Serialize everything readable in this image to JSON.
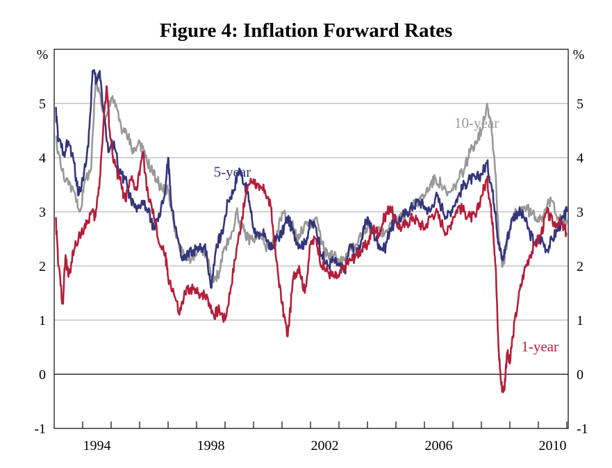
{
  "chart_data": {
    "type": "line",
    "title": "Figure 4: Inflation Forward Rates",
    "y_unit_left": "%",
    "y_unit_right": "%",
    "ylim": [
      -1,
      6
    ],
    "y_ticks": [
      -1,
      0,
      1,
      2,
      3,
      4,
      5
    ],
    "xlim": [
      1993.0,
      2011.05
    ],
    "x_ticks": [
      1994,
      1998,
      2002,
      2006,
      2010
    ],
    "x_minor_ticks": [
      1994,
      1995,
      1996,
      1997,
      1998,
      1999,
      2000,
      2001,
      2002,
      2003,
      2004,
      2005,
      2006,
      2007,
      2008,
      2009,
      2010,
      2011
    ],
    "grid": true,
    "series": [
      {
        "name": "10-year",
        "color": "#999999",
        "points": [
          [
            1993.05,
            4.4
          ],
          [
            1993.25,
            3.8
          ],
          [
            1993.5,
            3.5
          ],
          [
            1993.75,
            3.3
          ],
          [
            1993.9,
            3.0
          ],
          [
            1994.1,
            3.6
          ],
          [
            1994.3,
            3.8
          ],
          [
            1994.45,
            5.4
          ],
          [
            1994.6,
            5.2
          ],
          [
            1994.8,
            4.7
          ],
          [
            1995.0,
            5.1
          ],
          [
            1995.2,
            4.9
          ],
          [
            1995.4,
            4.5
          ],
          [
            1995.6,
            4.4
          ],
          [
            1995.8,
            4.1
          ],
          [
            1996.0,
            4.3
          ],
          [
            1996.2,
            4.0
          ],
          [
            1996.4,
            3.8
          ],
          [
            1996.6,
            3.6
          ],
          [
            1996.8,
            3.4
          ],
          [
            1997.0,
            3.4
          ],
          [
            1997.2,
            2.8
          ],
          [
            1997.4,
            2.3
          ],
          [
            1997.6,
            2.2
          ],
          [
            1997.8,
            2.1
          ],
          [
            1998.0,
            2.2
          ],
          [
            1998.2,
            2.3
          ],
          [
            1998.4,
            2.1
          ],
          [
            1998.6,
            1.7
          ],
          [
            1998.8,
            1.9
          ],
          [
            1998.95,
            2.3
          ],
          [
            1999.2,
            2.5
          ],
          [
            1999.4,
            3.0
          ],
          [
            1999.6,
            2.7
          ],
          [
            1999.8,
            2.5
          ],
          [
            2000.0,
            2.5
          ],
          [
            2000.2,
            2.6
          ],
          [
            2000.4,
            2.4
          ],
          [
            2000.6,
            2.3
          ],
          [
            2000.8,
            2.5
          ],
          [
            2001.0,
            3.0
          ],
          [
            2001.2,
            2.9
          ],
          [
            2001.4,
            2.7
          ],
          [
            2001.6,
            2.5
          ],
          [
            2001.8,
            2.8
          ],
          [
            2002.0,
            2.7
          ],
          [
            2002.2,
            2.9
          ],
          [
            2002.4,
            2.4
          ],
          [
            2002.6,
            2.2
          ],
          [
            2002.8,
            2.2
          ],
          [
            2003.0,
            2.1
          ],
          [
            2003.2,
            2.1
          ],
          [
            2003.4,
            2.3
          ],
          [
            2003.6,
            2.4
          ],
          [
            2003.8,
            2.6
          ],
          [
            2004.0,
            2.7
          ],
          [
            2004.2,
            2.6
          ],
          [
            2004.4,
            2.7
          ],
          [
            2004.6,
            2.6
          ],
          [
            2004.8,
            2.8
          ],
          [
            2005.0,
            2.8
          ],
          [
            2005.2,
            2.9
          ],
          [
            2005.4,
            3.0
          ],
          [
            2005.6,
            3.1
          ],
          [
            2005.8,
            3.2
          ],
          [
            2006.0,
            3.3
          ],
          [
            2006.2,
            3.5
          ],
          [
            2006.4,
            3.6
          ],
          [
            2006.6,
            3.5
          ],
          [
            2006.8,
            3.3
          ],
          [
            2007.0,
            3.4
          ],
          [
            2007.2,
            3.6
          ],
          [
            2007.4,
            3.8
          ],
          [
            2007.6,
            4.1
          ],
          [
            2007.8,
            4.3
          ],
          [
            2008.0,
            4.5
          ],
          [
            2008.2,
            5.0
          ],
          [
            2008.35,
            4.6
          ],
          [
            2008.5,
            3.7
          ],
          [
            2008.6,
            2.6
          ],
          [
            2008.75,
            2.0
          ],
          [
            2008.9,
            2.4
          ],
          [
            2009.1,
            2.9
          ],
          [
            2009.3,
            3.0
          ],
          [
            2009.5,
            3.1
          ],
          [
            2009.7,
            3.0
          ],
          [
            2009.9,
            2.9
          ],
          [
            2010.1,
            2.9
          ],
          [
            2010.3,
            3.1
          ],
          [
            2010.5,
            3.2
          ],
          [
            2010.7,
            2.9
          ],
          [
            2010.9,
            2.8
          ],
          [
            2011.0,
            2.85
          ]
        ]
      },
      {
        "name": "5-year",
        "color": "#34357a",
        "points": [
          [
            1993.05,
            4.9
          ],
          [
            1993.15,
            4.3
          ],
          [
            1993.35,
            4.1
          ],
          [
            1993.5,
            4.3
          ],
          [
            1993.7,
            3.9
          ],
          [
            1993.85,
            3.3
          ],
          [
            1994.0,
            3.6
          ],
          [
            1994.2,
            4.2
          ],
          [
            1994.35,
            5.6
          ],
          [
            1994.5,
            5.4
          ],
          [
            1994.6,
            5.6
          ],
          [
            1994.75,
            4.8
          ],
          [
            1994.9,
            4.1
          ],
          [
            1995.1,
            4.3
          ],
          [
            1995.3,
            3.7
          ],
          [
            1995.5,
            3.6
          ],
          [
            1995.7,
            3.2
          ],
          [
            1995.9,
            3.0
          ],
          [
            1996.1,
            3.2
          ],
          [
            1996.3,
            3.0
          ],
          [
            1996.5,
            2.7
          ],
          [
            1996.7,
            2.9
          ],
          [
            1996.9,
            3.4
          ],
          [
            1997.0,
            4.0
          ],
          [
            1997.1,
            3.2
          ],
          [
            1997.3,
            2.6
          ],
          [
            1997.5,
            2.1
          ],
          [
            1997.7,
            2.2
          ],
          [
            1997.9,
            2.3
          ],
          [
            1998.1,
            2.3
          ],
          [
            1998.3,
            2.4
          ],
          [
            1998.5,
            1.6
          ],
          [
            1998.7,
            2.4
          ],
          [
            1998.9,
            2.6
          ],
          [
            1999.1,
            3.2
          ],
          [
            1999.3,
            3.4
          ],
          [
            1999.5,
            3.8
          ],
          [
            1999.7,
            3.5
          ],
          [
            1999.85,
            3.2
          ],
          [
            2000.0,
            2.7
          ],
          [
            2000.2,
            2.5
          ],
          [
            2000.4,
            2.6
          ],
          [
            2000.6,
            2.3
          ],
          [
            2000.8,
            2.5
          ],
          [
            2001.0,
            2.6
          ],
          [
            2001.2,
            2.9
          ],
          [
            2001.4,
            2.6
          ],
          [
            2001.6,
            2.4
          ],
          [
            2001.8,
            2.4
          ],
          [
            2002.0,
            2.8
          ],
          [
            2002.2,
            2.7
          ],
          [
            2002.4,
            2.2
          ],
          [
            2002.6,
            2.0
          ],
          [
            2002.8,
            2.1
          ],
          [
            2003.0,
            2.0
          ],
          [
            2003.2,
            1.9
          ],
          [
            2003.4,
            2.4
          ],
          [
            2003.6,
            2.2
          ],
          [
            2003.8,
            2.5
          ],
          [
            2004.0,
            2.9
          ],
          [
            2004.2,
            2.6
          ],
          [
            2004.4,
            2.4
          ],
          [
            2004.6,
            2.3
          ],
          [
            2004.8,
            2.7
          ],
          [
            2005.0,
            2.8
          ],
          [
            2005.2,
            2.9
          ],
          [
            2005.4,
            3.0
          ],
          [
            2005.6,
            3.1
          ],
          [
            2005.8,
            3.2
          ],
          [
            2006.0,
            3.1
          ],
          [
            2006.2,
            3.0
          ],
          [
            2006.4,
            3.3
          ],
          [
            2006.6,
            3.1
          ],
          [
            2006.8,
            2.9
          ],
          [
            2007.0,
            3.1
          ],
          [
            2007.2,
            3.3
          ],
          [
            2007.4,
            3.5
          ],
          [
            2007.6,
            3.6
          ],
          [
            2007.8,
            3.6
          ],
          [
            2008.0,
            3.7
          ],
          [
            2008.2,
            3.9
          ],
          [
            2008.35,
            3.5
          ],
          [
            2008.5,
            3.0
          ],
          [
            2008.6,
            2.4
          ],
          [
            2008.75,
            2.1
          ],
          [
            2008.9,
            2.5
          ],
          [
            2009.1,
            2.9
          ],
          [
            2009.3,
            3.0
          ],
          [
            2009.5,
            2.9
          ],
          [
            2009.7,
            2.6
          ],
          [
            2009.9,
            2.4
          ],
          [
            2010.1,
            2.5
          ],
          [
            2010.3,
            2.3
          ],
          [
            2010.5,
            2.5
          ],
          [
            2010.7,
            2.7
          ],
          [
            2010.9,
            2.9
          ],
          [
            2011.0,
            3.0
          ]
        ]
      },
      {
        "name": "1-year",
        "color": "#b11f3a",
        "points": [
          [
            1993.05,
            2.9
          ],
          [
            1993.15,
            2.0
          ],
          [
            1993.3,
            1.3
          ],
          [
            1993.4,
            2.2
          ],
          [
            1993.5,
            1.8
          ],
          [
            1993.7,
            2.3
          ],
          [
            1993.9,
            2.6
          ],
          [
            1994.1,
            2.7
          ],
          [
            1994.3,
            3.0
          ],
          [
            1994.45,
            2.9
          ],
          [
            1994.6,
            3.6
          ],
          [
            1994.75,
            4.8
          ],
          [
            1994.85,
            5.3
          ],
          [
            1994.95,
            4.5
          ],
          [
            1995.1,
            3.9
          ],
          [
            1995.3,
            3.6
          ],
          [
            1995.5,
            3.2
          ],
          [
            1995.7,
            3.6
          ],
          [
            1995.9,
            3.4
          ],
          [
            1996.1,
            4.1
          ],
          [
            1996.3,
            3.3
          ],
          [
            1996.5,
            2.9
          ],
          [
            1996.7,
            2.4
          ],
          [
            1996.9,
            2.2
          ],
          [
            1997.0,
            1.8
          ],
          [
            1997.2,
            1.5
          ],
          [
            1997.4,
            1.1
          ],
          [
            1997.6,
            1.5
          ],
          [
            1997.8,
            1.6
          ],
          [
            1998.0,
            1.5
          ],
          [
            1998.2,
            1.5
          ],
          [
            1998.4,
            1.4
          ],
          [
            1998.6,
            1.1
          ],
          [
            1998.8,
            1.2
          ],
          [
            1999.0,
            1.0
          ],
          [
            1999.2,
            1.6
          ],
          [
            1999.4,
            2.3
          ],
          [
            1999.6,
            2.9
          ],
          [
            1999.8,
            3.5
          ],
          [
            2000.0,
            3.6
          ],
          [
            2000.2,
            3.4
          ],
          [
            2000.4,
            3.4
          ],
          [
            2000.6,
            3.1
          ],
          [
            2000.8,
            2.1
          ],
          [
            2001.0,
            1.3
          ],
          [
            2001.2,
            0.7
          ],
          [
            2001.4,
            1.8
          ],
          [
            2001.6,
            2.0
          ],
          [
            2001.8,
            1.5
          ],
          [
            2002.0,
            2.4
          ],
          [
            2002.2,
            2.5
          ],
          [
            2002.4,
            2.0
          ],
          [
            2002.6,
            1.9
          ],
          [
            2002.8,
            1.8
          ],
          [
            2003.0,
            1.8
          ],
          [
            2003.2,
            2.0
          ],
          [
            2003.4,
            2.1
          ],
          [
            2003.6,
            2.2
          ],
          [
            2003.8,
            2.3
          ],
          [
            2004.0,
            2.4
          ],
          [
            2004.2,
            2.7
          ],
          [
            2004.4,
            2.6
          ],
          [
            2004.6,
            2.9
          ],
          [
            2004.8,
            3.1
          ],
          [
            2005.0,
            2.8
          ],
          [
            2005.2,
            2.7
          ],
          [
            2005.4,
            2.8
          ],
          [
            2005.6,
            2.9
          ],
          [
            2005.8,
            2.8
          ],
          [
            2006.0,
            2.7
          ],
          [
            2006.2,
            2.9
          ],
          [
            2006.4,
            3.0
          ],
          [
            2006.6,
            2.8
          ],
          [
            2006.8,
            2.6
          ],
          [
            2007.0,
            2.9
          ],
          [
            2007.2,
            3.1
          ],
          [
            2007.4,
            3.0
          ],
          [
            2007.6,
            2.9
          ],
          [
            2007.8,
            2.9
          ],
          [
            2008.0,
            3.3
          ],
          [
            2008.2,
            3.6
          ],
          [
            2008.3,
            3.2
          ],
          [
            2008.4,
            2.8
          ],
          [
            2008.5,
            2.0
          ],
          [
            2008.6,
            0.5
          ],
          [
            2008.7,
            -0.2
          ],
          [
            2008.8,
            -0.3
          ],
          [
            2008.9,
            0.4
          ],
          [
            2009.0,
            0.2
          ],
          [
            2009.1,
            0.7
          ],
          [
            2009.3,
            1.4
          ],
          [
            2009.5,
            1.9
          ],
          [
            2009.7,
            2.2
          ],
          [
            2009.9,
            2.4
          ],
          [
            2010.1,
            2.6
          ],
          [
            2010.3,
            3.0
          ],
          [
            2010.5,
            2.8
          ],
          [
            2010.7,
            2.8
          ],
          [
            2010.9,
            2.7
          ],
          [
            2011.0,
            2.6
          ]
        ]
      }
    ],
    "labels": [
      {
        "series": "10-year",
        "text": "10-year",
        "x": 2007.05,
        "y": 4.55
      },
      {
        "series": "5-year",
        "text": "5-year",
        "x": 1998.6,
        "y": 3.65
      },
      {
        "series": "1-year",
        "text": "1-year",
        "x": 2009.4,
        "y": 0.42
      }
    ]
  }
}
